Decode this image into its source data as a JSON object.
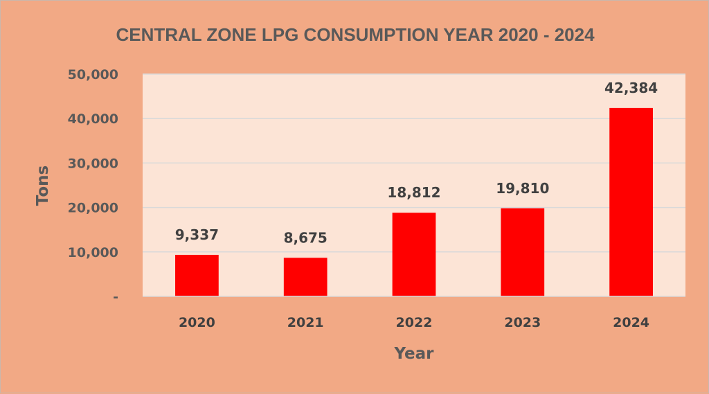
{
  "chart_data": {
    "type": "bar",
    "title": "CENTRAL ZONE LPG CONSUMPTION  YEAR 2020 - 2024",
    "xlabel": "Year",
    "ylabel": "Tons",
    "categories": [
      "2020",
      "2021",
      "2022",
      "2023",
      "2024"
    ],
    "values": [
      9337,
      8675,
      18812,
      19810,
      42384
    ],
    "data_labels": [
      "9,337",
      "8,675",
      "18,812",
      "19,810",
      "42,384"
    ],
    "ylim": [
      0,
      50000
    ],
    "y_ticks": [
      0,
      10000,
      20000,
      30000,
      40000,
      50000
    ],
    "y_tick_labels": [
      "-",
      "10,000",
      "20,000",
      "30,000",
      "40,000",
      "50,000"
    ],
    "grid": true,
    "legend": "none",
    "colors": {
      "background": "#f2a985",
      "plot_area": "#fce4d6",
      "bar": "#ff0000",
      "gridline": "#d9d9d9",
      "text": "#595959"
    }
  }
}
